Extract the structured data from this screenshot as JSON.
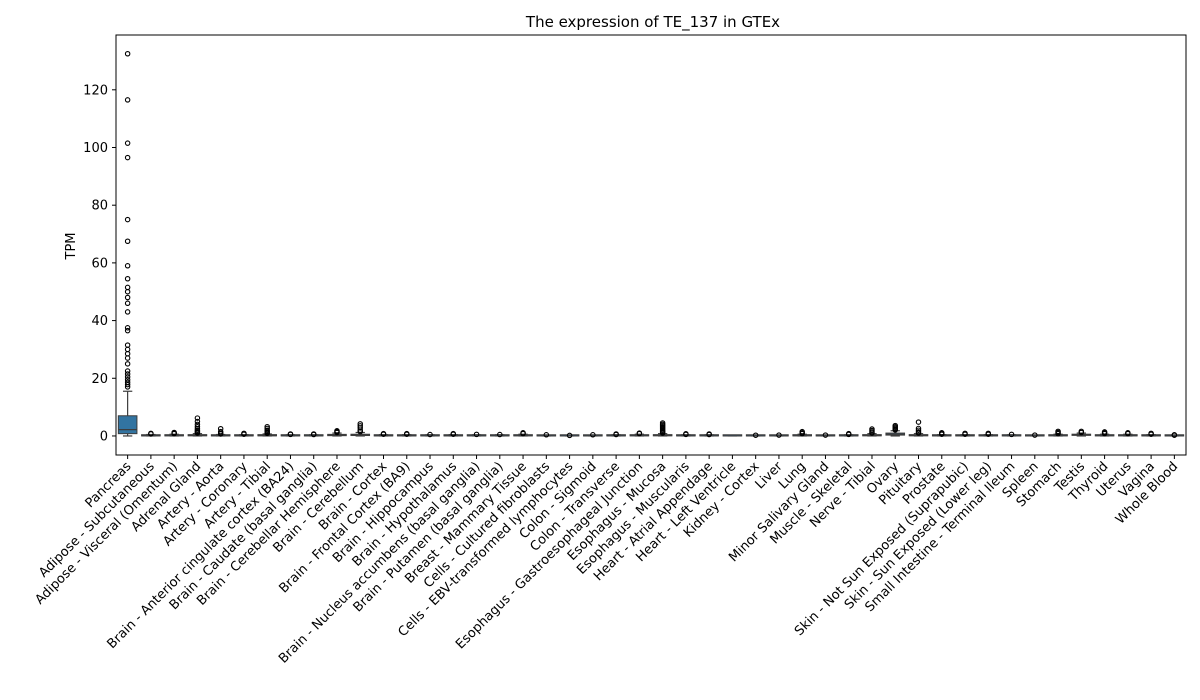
{
  "chart_data": {
    "type": "box",
    "title": "The expression of TE_137 in GTEx",
    "xlabel": "",
    "ylabel": "TPM",
    "ylim": [
      -6.6,
      139
    ],
    "yticks": [
      0,
      20,
      40,
      60,
      80,
      100,
      120
    ],
    "grid": false,
    "legend": "none",
    "box_color": "#3274a1",
    "categories": [
      "Pancreas",
      "Adipose - Subcutaneous",
      "Adipose - Visceral (Omentum)",
      "Adrenal Gland",
      "Artery - Aorta",
      "Artery - Coronary",
      "Artery - Tibial",
      "Brain - Anterior cingulate cortex (BA24)",
      "Brain - Caudate (basal ganglia)",
      "Brain - Cerebellar Hemisphere",
      "Brain - Cerebellum",
      "Brain - Cortex",
      "Brain - Frontal Cortex (BA9)",
      "Brain - Hippocampus",
      "Brain - Hypothalamus",
      "Brain - Nucleus accumbens (basal ganglia)",
      "Brain - Putamen (basal ganglia)",
      "Breast - Mammary Tissue",
      "Cells - Cultured fibroblasts",
      "Cells - EBV-transformed lymphocytes",
      "Colon - Sigmoid",
      "Colon - Transverse",
      "Esophagus - Gastroesophageal Junction",
      "Esophagus - Mucosa",
      "Esophagus - Muscularis",
      "Heart - Atrial Appendage",
      "Heart - Left Ventricle",
      "Kidney - Cortex",
      "Liver",
      "Lung",
      "Minor Salivary Gland",
      "Muscle - Skeletal",
      "Nerve - Tibial",
      "Ovary",
      "Pituitary",
      "Prostate",
      "Skin - Not Sun Exposed (Suprapubic)",
      "Skin - Sun Exposed (Lower leg)",
      "Small Intestine - Terminal Ileum",
      "Spleen",
      "Stomach",
      "Testis",
      "Thyroid",
      "Uterus",
      "Vagina",
      "Whole Blood"
    ],
    "boxes": [
      {
        "min": 0,
        "q1": 0.8,
        "median": 2.2,
        "q3": 7.0,
        "max": 15.5,
        "outliers": [
          17,
          17.8,
          18.6,
          19.5,
          20.5,
          21.5,
          22.5,
          25,
          27,
          28.5,
          30,
          31.5,
          36.5,
          37.5,
          43,
          46,
          48,
          50,
          51.5,
          54.5,
          59,
          67.5,
          75,
          96.5,
          101.5,
          116.5,
          132.5
        ]
      },
      {
        "min": 0,
        "q1": 0.02,
        "median": 0.08,
        "q3": 0.2,
        "max": 0.5,
        "outliers": [
          0.7,
          0.9
        ]
      },
      {
        "min": 0,
        "q1": 0.03,
        "median": 0.1,
        "q3": 0.25,
        "max": 0.6,
        "outliers": [
          0.8,
          1.0,
          1.2
        ]
      },
      {
        "min": 0,
        "q1": 0.05,
        "median": 0.15,
        "q3": 0.35,
        "max": 0.8,
        "outliers": [
          1.0,
          1.3,
          1.6,
          2.0,
          2.5,
          3.2,
          4.0,
          5.0,
          6.2
        ]
      },
      {
        "min": 0,
        "q1": 0.02,
        "median": 0.08,
        "q3": 0.2,
        "max": 0.5,
        "outliers": [
          0.7,
          1.0,
          1.5,
          2.5
        ]
      },
      {
        "min": 0,
        "q1": 0.02,
        "median": 0.07,
        "q3": 0.18,
        "max": 0.45,
        "outliers": [
          0.6,
          0.9
        ]
      },
      {
        "min": 0,
        "q1": 0.05,
        "median": 0.12,
        "q3": 0.3,
        "max": 0.7,
        "outliers": [
          0.9,
          1.2,
          1.6,
          2.0,
          2.6,
          3.2
        ]
      },
      {
        "min": 0,
        "q1": 0.02,
        "median": 0.06,
        "q3": 0.15,
        "max": 0.4,
        "outliers": [
          0.55,
          0.7
        ]
      },
      {
        "min": 0,
        "q1": 0.02,
        "median": 0.06,
        "q3": 0.15,
        "max": 0.4,
        "outliers": [
          0.5,
          0.7
        ]
      },
      {
        "min": 0,
        "q1": 0.1,
        "median": 0.3,
        "q3": 0.55,
        "max": 1.0,
        "outliers": [
          1.2,
          1.5,
          1.8
        ]
      },
      {
        "min": 0,
        "q1": 0.15,
        "median": 0.35,
        "q3": 0.6,
        "max": 1.2,
        "outliers": [
          1.5,
          2.0,
          2.8,
          3.5,
          4.2
        ]
      },
      {
        "min": 0,
        "q1": 0.02,
        "median": 0.07,
        "q3": 0.18,
        "max": 0.45,
        "outliers": [
          0.6,
          0.8
        ]
      },
      {
        "min": 0,
        "q1": 0.02,
        "median": 0.07,
        "q3": 0.17,
        "max": 0.45,
        "outliers": [
          0.6,
          0.8
        ]
      },
      {
        "min": 0,
        "q1": 0.02,
        "median": 0.06,
        "q3": 0.15,
        "max": 0.4,
        "outliers": [
          0.5
        ]
      },
      {
        "min": 0,
        "q1": 0.02,
        "median": 0.07,
        "q3": 0.18,
        "max": 0.45,
        "outliers": [
          0.6,
          0.8
        ]
      },
      {
        "min": 0,
        "q1": 0.02,
        "median": 0.06,
        "q3": 0.15,
        "max": 0.4,
        "outliers": [
          0.55
        ]
      },
      {
        "min": 0,
        "q1": 0.02,
        "median": 0.06,
        "q3": 0.15,
        "max": 0.4,
        "outliers": [
          0.5
        ]
      },
      {
        "min": 0,
        "q1": 0.03,
        "median": 0.1,
        "q3": 0.25,
        "max": 0.6,
        "outliers": [
          0.8,
          1.1
        ]
      },
      {
        "min": 0,
        "q1": 0.0,
        "median": 0.02,
        "q3": 0.06,
        "max": 0.15,
        "outliers": [
          0.4
        ]
      },
      {
        "min": 0,
        "q1": 0.0,
        "median": 0.01,
        "q3": 0.03,
        "max": 0.08,
        "outliers": [
          0.2
        ]
      },
      {
        "min": 0,
        "q1": 0.0,
        "median": 0.02,
        "q3": 0.06,
        "max": 0.15,
        "outliers": [
          0.4
        ]
      },
      {
        "min": 0,
        "q1": 0.02,
        "median": 0.06,
        "q3": 0.15,
        "max": 0.4,
        "outliers": [
          0.5,
          0.7
        ]
      },
      {
        "min": 0,
        "q1": 0.03,
        "median": 0.1,
        "q3": 0.25,
        "max": 0.6,
        "outliers": [
          0.8,
          1.0
        ]
      },
      {
        "min": 0,
        "q1": 0.05,
        "median": 0.15,
        "q3": 0.35,
        "max": 0.8,
        "outliers": [
          1.0,
          1.3,
          1.6,
          2.0,
          2.4,
          2.8,
          3.2,
          3.6,
          4.0,
          4.5
        ]
      },
      {
        "min": 0,
        "q1": 0.02,
        "median": 0.06,
        "q3": 0.15,
        "max": 0.4,
        "outliers": [
          0.55,
          0.75
        ]
      },
      {
        "min": 0,
        "q1": 0.02,
        "median": 0.06,
        "q3": 0.15,
        "max": 0.4,
        "outliers": [
          0.5,
          0.7
        ]
      },
      {
        "min": 0,
        "q1": 0.0,
        "median": 0.01,
        "q3": 0.03,
        "max": 0.08,
        "outliers": []
      },
      {
        "min": 0,
        "q1": 0.0,
        "median": 0.01,
        "q3": 0.03,
        "max": 0.08,
        "outliers": [
          0.25
        ]
      },
      {
        "min": 0,
        "q1": 0.0,
        "median": 0.02,
        "q3": 0.05,
        "max": 0.12,
        "outliers": [
          0.3
        ]
      },
      {
        "min": 0,
        "q1": 0.03,
        "median": 0.1,
        "q3": 0.25,
        "max": 0.6,
        "outliers": [
          0.8,
          1.1,
          1.5
        ]
      },
      {
        "min": 0,
        "q1": 0.0,
        "median": 0.02,
        "q3": 0.05,
        "max": 0.12,
        "outliers": [
          0.3
        ]
      },
      {
        "min": 0,
        "q1": 0.02,
        "median": 0.06,
        "q3": 0.15,
        "max": 0.4,
        "outliers": [
          0.55,
          0.8
        ]
      },
      {
        "min": 0,
        "q1": 0.05,
        "median": 0.15,
        "q3": 0.35,
        "max": 0.8,
        "outliers": [
          1.0,
          1.4,
          1.9,
          2.4
        ]
      },
      {
        "min": 0,
        "q1": 0.3,
        "median": 0.6,
        "q3": 1.0,
        "max": 1.8,
        "outliers": [
          2.1,
          2.4,
          2.8,
          3.2,
          3.6
        ]
      },
      {
        "min": 0,
        "q1": 0.05,
        "median": 0.15,
        "q3": 0.35,
        "max": 0.8,
        "outliers": [
          1.0,
          1.4,
          2.0,
          2.6,
          4.8
        ]
      },
      {
        "min": 0,
        "q1": 0.02,
        "median": 0.07,
        "q3": 0.18,
        "max": 0.45,
        "outliers": [
          0.6,
          0.9,
          1.1
        ]
      },
      {
        "min": 0,
        "q1": 0.02,
        "median": 0.07,
        "q3": 0.18,
        "max": 0.45,
        "outliers": [
          0.6,
          0.9
        ]
      },
      {
        "min": 0,
        "q1": 0.02,
        "median": 0.07,
        "q3": 0.18,
        "max": 0.45,
        "outliers": [
          0.6,
          0.9
        ]
      },
      {
        "min": 0,
        "q1": 0.02,
        "median": 0.06,
        "q3": 0.15,
        "max": 0.4,
        "outliers": [
          0.55
        ]
      },
      {
        "min": 0,
        "q1": 0.0,
        "median": 0.02,
        "q3": 0.05,
        "max": 0.12,
        "outliers": [
          0.3
        ]
      },
      {
        "min": 0,
        "q1": 0.03,
        "median": 0.1,
        "q3": 0.25,
        "max": 0.6,
        "outliers": [
          0.8,
          1.2,
          1.6
        ]
      },
      {
        "min": 0,
        "q1": 0.2,
        "median": 0.4,
        "q3": 0.6,
        "max": 1.0,
        "outliers": [
          1.2,
          1.6
        ]
      },
      {
        "min": 0,
        "q1": 0.03,
        "median": 0.1,
        "q3": 0.25,
        "max": 0.6,
        "outliers": [
          0.8,
          1.1,
          1.4
        ]
      },
      {
        "min": 0,
        "q1": 0.03,
        "median": 0.1,
        "q3": 0.25,
        "max": 0.6,
        "outliers": [
          0.8,
          1.1
        ]
      },
      {
        "min": 0,
        "q1": 0.02,
        "median": 0.07,
        "q3": 0.18,
        "max": 0.45,
        "outliers": [
          0.6,
          0.9
        ]
      },
      {
        "min": 0,
        "q1": 0.0,
        "median": 0.02,
        "q3": 0.05,
        "max": 0.12,
        "outliers": [
          0.25,
          0.4
        ]
      }
    ]
  }
}
